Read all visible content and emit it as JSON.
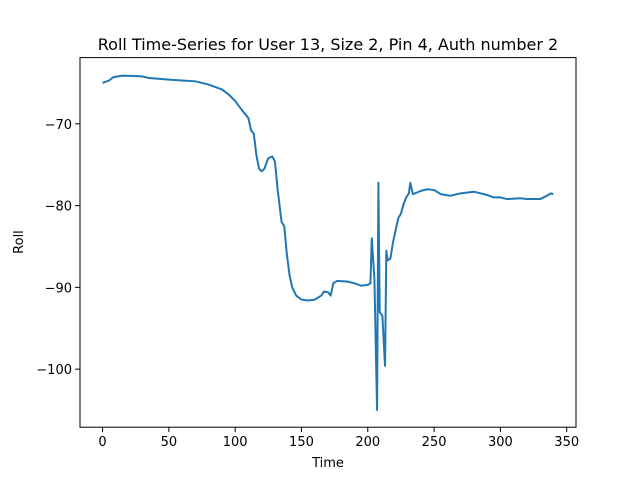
{
  "chart_data": {
    "type": "line",
    "title": "Roll Time-Series for User 13, Size 2, Pin 4, Auth number 2",
    "x_label": "Time",
    "y_label": "Roll",
    "x": [
      0,
      5,
      8,
      15,
      30,
      35,
      50,
      60,
      70,
      80,
      90,
      95,
      100,
      105,
      110,
      112,
      114,
      116,
      118,
      120,
      122,
      125,
      128,
      130,
      132,
      135,
      137,
      139,
      141,
      143,
      146,
      150,
      155,
      160,
      165,
      167,
      170,
      172,
      174,
      177,
      185,
      190,
      195,
      200,
      202,
      203,
      205,
      207,
      208,
      209,
      211,
      213,
      214,
      215,
      217,
      219,
      221,
      223,
      225,
      227,
      229,
      231,
      232,
      234,
      240,
      245,
      250,
      255,
      262,
      270,
      280,
      290,
      295,
      300,
      305,
      315,
      320,
      330,
      335,
      338,
      340
    ],
    "series": [
      {
        "name": "Roll",
        "color": "#1f77b4",
        "values": [
          -65,
          -64.7,
          -64.3,
          -64.1,
          -64.2,
          -64.4,
          -64.6,
          -64.7,
          -64.8,
          -65.2,
          -65.8,
          -66.4,
          -67.2,
          -68.3,
          -69.3,
          -70.8,
          -71.2,
          -73.8,
          -75.5,
          -75.8,
          -75.5,
          -74.2,
          -74,
          -74.6,
          -78,
          -82,
          -82.5,
          -86,
          -88.5,
          -90,
          -91,
          -91.5,
          -91.6,
          -91.5,
          -91,
          -90.5,
          -90.6,
          -91,
          -89.5,
          -89.2,
          -89.3,
          -89.5,
          -89.8,
          -89.7,
          -89.5,
          -84,
          -89,
          -105,
          -77.2,
          -93,
          -93.5,
          -99.6,
          -85.5,
          -86.7,
          -86.5,
          -84.5,
          -83,
          -81.5,
          -81,
          -79.8,
          -79,
          -78.5,
          -77.2,
          -78.6,
          -78.2,
          -78,
          -78.1,
          -78.6,
          -78.8,
          -78.5,
          -78.3,
          -78.7,
          -79,
          -79,
          -79.2,
          -79.1,
          -79.2,
          -79.2,
          -78.8,
          -78.5,
          -78.6
        ]
      }
    ],
    "xlim": [
      -17,
      357
    ],
    "ylim": [
      -107.1,
      -61.9
    ],
    "xticks": [
      0,
      50,
      100,
      150,
      200,
      250,
      300,
      350
    ],
    "yticks": [
      {
        "value": -100,
        "label": "−100"
      },
      {
        "value": -90,
        "label": "−90"
      },
      {
        "value": -80,
        "label": "−80"
      },
      {
        "value": -70,
        "label": "−70"
      }
    ]
  }
}
